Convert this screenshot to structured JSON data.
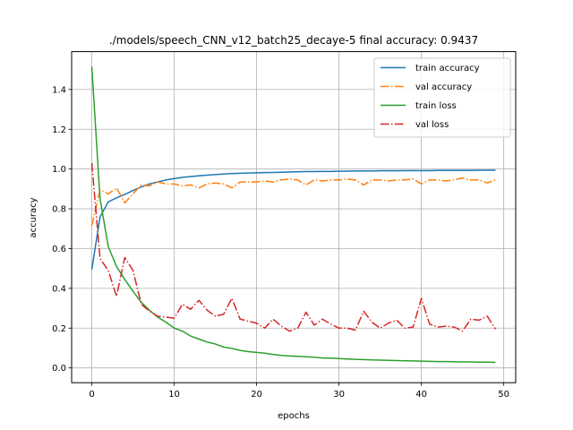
{
  "chart_data": {
    "type": "line",
    "title": "./models/speech_CNN_v12_batch25_decaye-5 final accuracy: 0.9437",
    "xlabel": "epochs",
    "ylabel": "accuracy",
    "xlim": [
      -2.45,
      51.45
    ],
    "ylim": [
      -0.0744,
      1.5904
    ],
    "xticks": [
      0,
      10,
      20,
      30,
      40,
      50
    ],
    "xtick_labels": [
      "0",
      "10",
      "20",
      "30",
      "40",
      "50"
    ],
    "yticks": [
      0.0,
      0.2,
      0.4,
      0.6,
      0.8,
      1.0,
      1.2,
      1.4
    ],
    "ytick_labels": [
      "0.0",
      "0.2",
      "0.4",
      "0.6",
      "0.8",
      "1.0",
      "1.2",
      "1.4"
    ],
    "grid": true,
    "legend_position": "top-right",
    "x": [
      0,
      1,
      2,
      3,
      4,
      5,
      6,
      7,
      8,
      9,
      10,
      11,
      12,
      13,
      14,
      15,
      16,
      17,
      18,
      19,
      20,
      21,
      22,
      23,
      24,
      25,
      26,
      27,
      28,
      29,
      30,
      31,
      32,
      33,
      34,
      35,
      36,
      37,
      38,
      39,
      40,
      41,
      42,
      43,
      44,
      45,
      46,
      47,
      48,
      49
    ],
    "series": [
      {
        "name": "train accuracy",
        "color": "#1f77b4",
        "style": "solid",
        "values": [
          0.495,
          0.76,
          0.835,
          0.855,
          0.872,
          0.892,
          0.91,
          0.925,
          0.935,
          0.945,
          0.952,
          0.958,
          0.962,
          0.966,
          0.969,
          0.972,
          0.975,
          0.977,
          0.979,
          0.98,
          0.981,
          0.982,
          0.983,
          0.984,
          0.985,
          0.986,
          0.987,
          0.987,
          0.988,
          0.988,
          0.989,
          0.989,
          0.99,
          0.99,
          0.99,
          0.991,
          0.991,
          0.991,
          0.992,
          0.992,
          0.992,
          0.992,
          0.993,
          0.993,
          0.993,
          0.993,
          0.993,
          0.994,
          0.994,
          0.994
        ]
      },
      {
        "name": "val accuracy",
        "color": "#ff7f0e",
        "style": "dashdot",
        "values": [
          0.715,
          0.895,
          0.875,
          0.905,
          0.83,
          0.875,
          0.92,
          0.915,
          0.935,
          0.925,
          0.925,
          0.915,
          0.92,
          0.905,
          0.925,
          0.93,
          0.925,
          0.905,
          0.935,
          0.935,
          0.935,
          0.94,
          0.935,
          0.945,
          0.95,
          0.945,
          0.92,
          0.945,
          0.94,
          0.945,
          0.945,
          0.95,
          0.945,
          0.92,
          0.945,
          0.945,
          0.94,
          0.945,
          0.945,
          0.95,
          0.925,
          0.945,
          0.945,
          0.94,
          0.945,
          0.955,
          0.945,
          0.945,
          0.93,
          0.945
        ]
      },
      {
        "name": "train loss",
        "color": "#2ca02c",
        "style": "solid",
        "values": [
          1.515,
          0.85,
          0.61,
          0.51,
          0.445,
          0.385,
          0.33,
          0.29,
          0.255,
          0.23,
          0.2,
          0.185,
          0.16,
          0.145,
          0.13,
          0.12,
          0.105,
          0.098,
          0.088,
          0.082,
          0.078,
          0.074,
          0.068,
          0.063,
          0.06,
          0.058,
          0.056,
          0.054,
          0.05,
          0.049,
          0.047,
          0.045,
          0.043,
          0.042,
          0.04,
          0.039,
          0.038,
          0.037,
          0.036,
          0.035,
          0.034,
          0.033,
          0.032,
          0.032,
          0.031,
          0.03,
          0.03,
          0.029,
          0.029,
          0.028
        ]
      },
      {
        "name": "val loss",
        "color": "#d62728",
        "style": "dashdot",
        "values": [
          1.03,
          0.55,
          0.49,
          0.36,
          0.555,
          0.49,
          0.32,
          0.285,
          0.26,
          0.255,
          0.25,
          0.32,
          0.295,
          0.34,
          0.29,
          0.26,
          0.27,
          0.35,
          0.245,
          0.235,
          0.225,
          0.2,
          0.245,
          0.21,
          0.185,
          0.2,
          0.28,
          0.215,
          0.245,
          0.22,
          0.2,
          0.2,
          0.19,
          0.285,
          0.23,
          0.2,
          0.225,
          0.24,
          0.2,
          0.205,
          0.35,
          0.22,
          0.205,
          0.21,
          0.205,
          0.185,
          0.245,
          0.24,
          0.26,
          0.195
        ]
      }
    ]
  }
}
